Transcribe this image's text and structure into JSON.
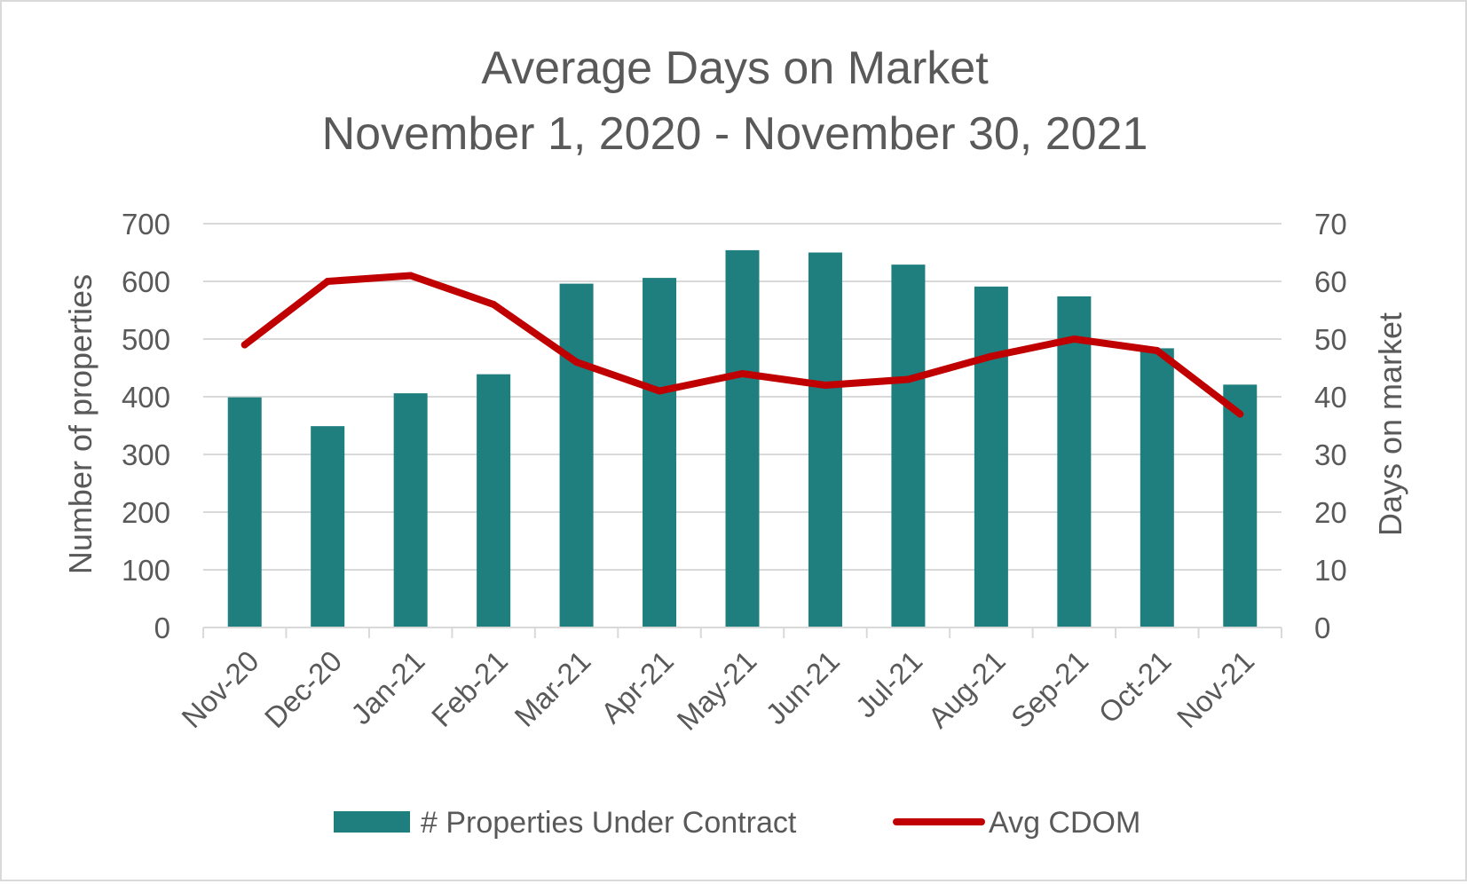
{
  "chart_data": {
    "type": "bar",
    "title": "Average Days on Market",
    "subtitle": "November 1, 2020 - November 30, 2021",
    "categories": [
      "Nov-20",
      "Dec-20",
      "Jan-21",
      "Feb-21",
      "Mar-21",
      "Apr-21",
      "May-21",
      "Jun-21",
      "Jul-21",
      "Aug-21",
      "Sep-21",
      "Oct-21",
      "Nov-21"
    ],
    "series": [
      {
        "name": "# Properties Under Contract",
        "type": "bar",
        "axis": "left",
        "color": "#1f7f7f",
        "values": [
          399,
          349,
          406,
          439,
          596,
          606,
          654,
          650,
          629,
          591,
          574,
          484,
          421
        ]
      },
      {
        "name": "Avg CDOM",
        "type": "line",
        "axis": "right",
        "color": "#c00000",
        "values": [
          49,
          60,
          61,
          56,
          46,
          41,
          44,
          42,
          43,
          47,
          50,
          48,
          37
        ]
      }
    ],
    "ylabel": "Number of properties",
    "y2label": "Days on market",
    "ylim": [
      0,
      700
    ],
    "y2lim": [
      0,
      70
    ],
    "yticks": [
      "0",
      "100",
      "200",
      "300",
      "400",
      "500",
      "600",
      "700"
    ],
    "y2ticks": [
      "0",
      "10",
      "20",
      "30",
      "40",
      "50",
      "60",
      "70"
    ],
    "grid": true,
    "legend_position": "bottom",
    "gridline_color": "#d9d9d9",
    "axis_text_color": "#595959"
  }
}
